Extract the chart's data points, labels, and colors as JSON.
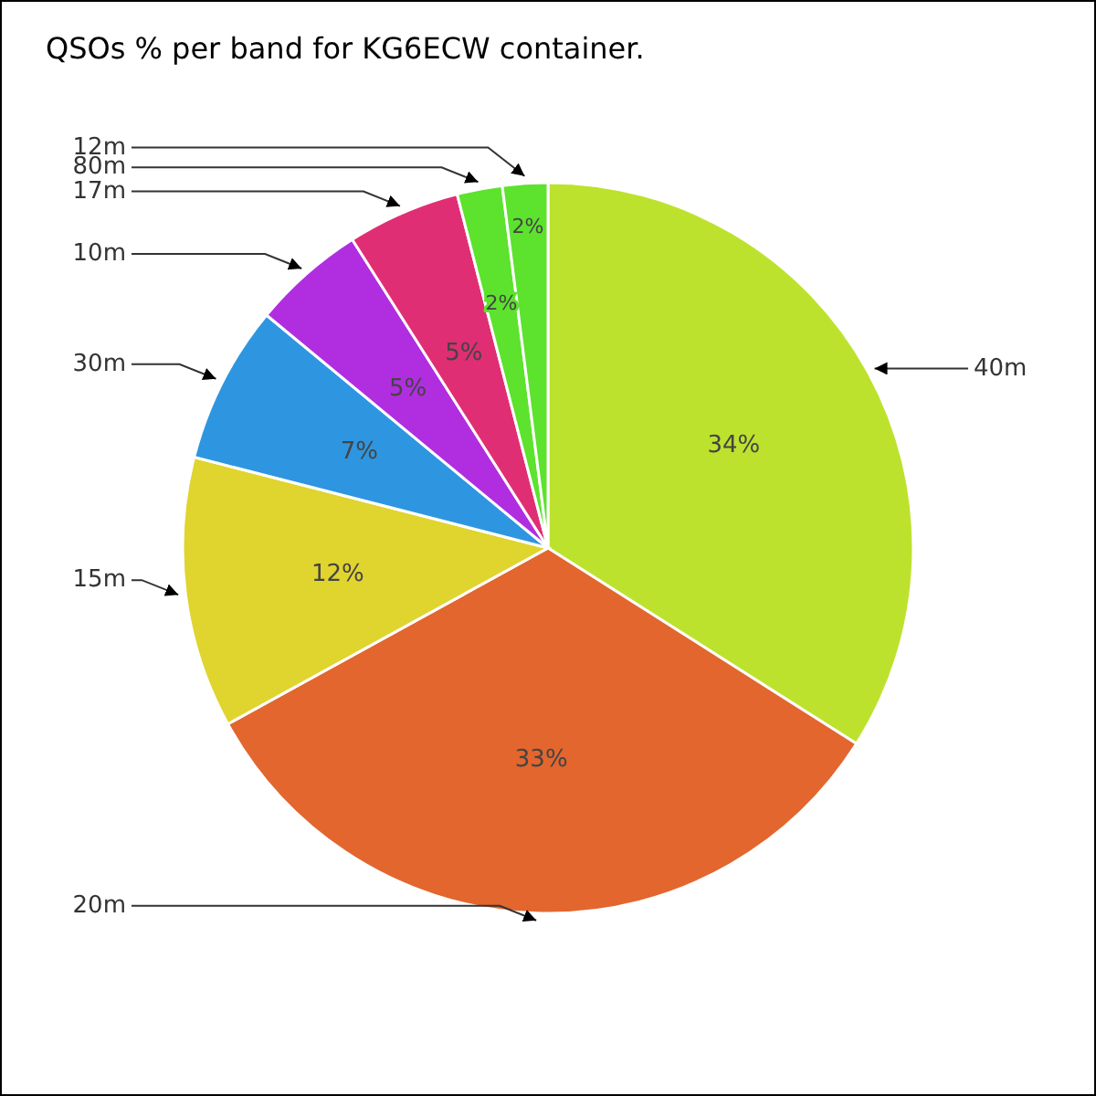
{
  "chart_data": {
    "type": "pie",
    "title": "QSOs % per band for KG6ECW container.",
    "categories": [
      "40m",
      "20m",
      "15m",
      "30m",
      "10m",
      "17m",
      "80m",
      "12m"
    ],
    "values": [
      34,
      33,
      12,
      7,
      5,
      5,
      2,
      2
    ],
    "colors": [
      "#bde22e",
      "#e2662e",
      "#e0d42e",
      "#2e96e0",
      "#b02ee0",
      "#e02e74",
      "#5de22e",
      "#5de22e"
    ],
    "value_labels": [
      "34%",
      "33%",
      "12%",
      "7%",
      "5%",
      "5%",
      "2%",
      "2%"
    ],
    "legend": false
  }
}
